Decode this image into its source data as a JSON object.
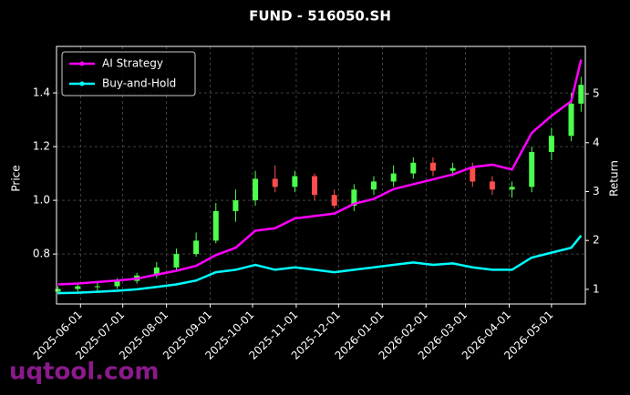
{
  "chart_data": {
    "type": "candlestick",
    "title": "FUND - 516050.SH",
    "ylabel": "Price",
    "y2label": "Return",
    "watermark": "uqtool.com",
    "x": [
      "2025-05-16",
      "2025-05-30",
      "2025-06-13",
      "2025-06-27",
      "2025-07-11",
      "2025-07-25",
      "2025-08-08",
      "2025-08-22",
      "2025-09-05",
      "2025-09-19",
      "2025-10-03",
      "2025-10-17",
      "2025-10-31",
      "2025-11-14",
      "2025-11-28",
      "2025-12-12",
      "2025-12-26",
      "2026-01-09",
      "2026-01-23",
      "2026-02-06",
      "2026-02-20",
      "2026-03-06",
      "2026-03-20",
      "2026-04-03",
      "2026-04-17",
      "2026-05-01",
      "2026-05-15",
      "2026-05-22"
    ],
    "open": [
      0.66,
      0.67,
      0.68,
      0.68,
      0.7,
      0.72,
      0.75,
      0.8,
      0.85,
      0.96,
      1.0,
      1.08,
      1.05,
      1.09,
      1.02,
      0.98,
      1.04,
      1.07,
      1.1,
      1.14,
      1.11,
      1.12,
      1.07,
      1.04,
      1.05,
      1.18,
      1.24,
      1.36
    ],
    "high": [
      0.68,
      0.69,
      0.7,
      0.71,
      0.73,
      0.77,
      0.82,
      0.88,
      0.99,
      1.04,
      1.11,
      1.13,
      1.11,
      1.1,
      1.04,
      1.06,
      1.09,
      1.13,
      1.16,
      1.16,
      1.14,
      1.14,
      1.09,
      1.07,
      1.2,
      1.27,
      1.4,
      1.46
    ],
    "low": [
      0.65,
      0.66,
      0.66,
      0.67,
      0.69,
      0.71,
      0.74,
      0.79,
      0.84,
      0.92,
      0.98,
      1.03,
      1.03,
      1.0,
      0.97,
      0.96,
      1.02,
      1.05,
      1.08,
      1.09,
      1.09,
      1.05,
      1.02,
      1.01,
      1.03,
      1.15,
      1.22,
      1.33
    ],
    "close": [
      0.67,
      0.68,
      0.68,
      0.7,
      0.72,
      0.75,
      0.8,
      0.85,
      0.96,
      1.0,
      1.08,
      1.05,
      1.09,
      1.02,
      0.98,
      1.04,
      1.07,
      1.1,
      1.14,
      1.11,
      1.12,
      1.07,
      1.04,
      1.05,
      1.18,
      1.24,
      1.36,
      1.43
    ],
    "up_color": "#4dff4d",
    "down_color": "#ff4d4d",
    "series": [
      {
        "name": "AI Strategy",
        "color": "#ff00ff",
        "axis": "y2",
        "values": [
          1.1,
          1.12,
          1.15,
          1.18,
          1.22,
          1.3,
          1.38,
          1.48,
          1.7,
          1.85,
          2.2,
          2.25,
          2.45,
          2.5,
          2.55,
          2.75,
          2.85,
          3.05,
          3.15,
          3.25,
          3.35,
          3.5,
          3.55,
          3.45,
          4.2,
          4.55,
          4.85,
          5.7
        ]
      },
      {
        "name": "Buy-and-Hold",
        "color": "#00ffff",
        "axis": "y2",
        "values": [
          0.92,
          0.93,
          0.95,
          0.97,
          1.0,
          1.05,
          1.1,
          1.18,
          1.35,
          1.4,
          1.5,
          1.4,
          1.45,
          1.4,
          1.35,
          1.4,
          1.45,
          1.5,
          1.55,
          1.5,
          1.53,
          1.45,
          1.4,
          1.4,
          1.65,
          1.75,
          1.85,
          2.1
        ]
      }
    ],
    "xlim": [
      "2025-05-15",
      "2026-05-25"
    ],
    "xticks": [
      "2025-06-01",
      "2025-07-01",
      "2025-08-01",
      "2025-09-01",
      "2025-10-01",
      "2025-11-01",
      "2025-12-01",
      "2026-01-01",
      "2026-02-01",
      "2026-03-01",
      "2026-04-01",
      "2026-05-01"
    ],
    "ylim": [
      0.614,
      1.573
    ],
    "yticks": [
      0.8,
      {
        "value": 1,
        "label": "1.0"
      },
      1.2,
      1.4
    ],
    "y2lim": [
      0.7,
      5.97
    ],
    "y2ticks": [
      1,
      2,
      3,
      4,
      5
    ],
    "grid": true,
    "legend": "upper left"
  }
}
